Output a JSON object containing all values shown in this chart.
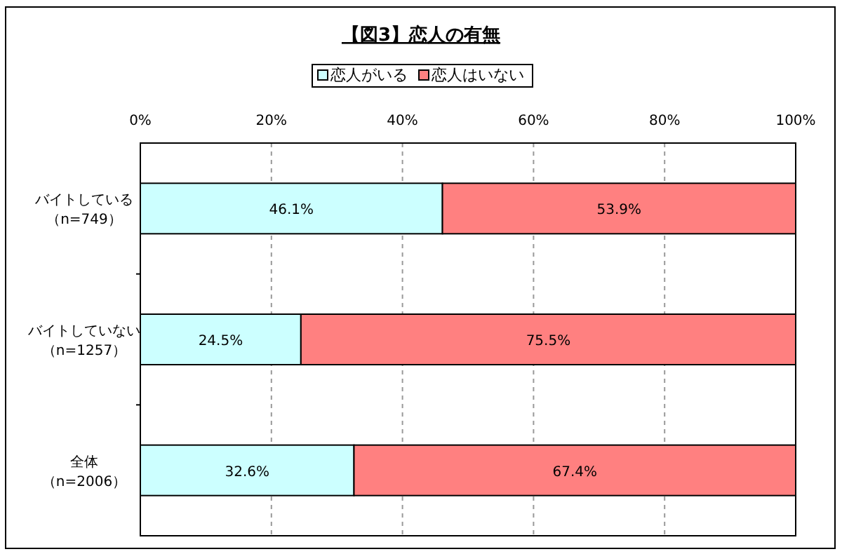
{
  "chart_data": {
    "type": "bar",
    "orientation": "horizontal",
    "stacked": true,
    "title": "【図3】恋人の有無",
    "categories": [
      "バイトしている（n=749）",
      "バイトしていない（n=1257）",
      "全体（n=2006）"
    ],
    "series": [
      {
        "name": "恋人がいる",
        "color": "#ccffff",
        "values": [
          46.1,
          24.5,
          32.6
        ],
        "value_labels": [
          "46.1%",
          "24.5%",
          "32.6%"
        ]
      },
      {
        "name": "恋人はいない",
        "color": "#ff8080",
        "values": [
          53.9,
          75.5,
          67.4
        ],
        "value_labels": [
          "53.9%",
          "75.5%",
          "67.4%"
        ]
      }
    ],
    "xlim": [
      0,
      100
    ],
    "xticks": [
      {
        "value": 0,
        "label": "0%"
      },
      {
        "value": 20,
        "label": "20%"
      },
      {
        "value": 40,
        "label": "40%"
      },
      {
        "value": 60,
        "label": "60%"
      },
      {
        "value": 80,
        "label": "80%"
      },
      {
        "value": 100,
        "label": "100%"
      }
    ],
    "grid": "x",
    "legend": "top"
  }
}
